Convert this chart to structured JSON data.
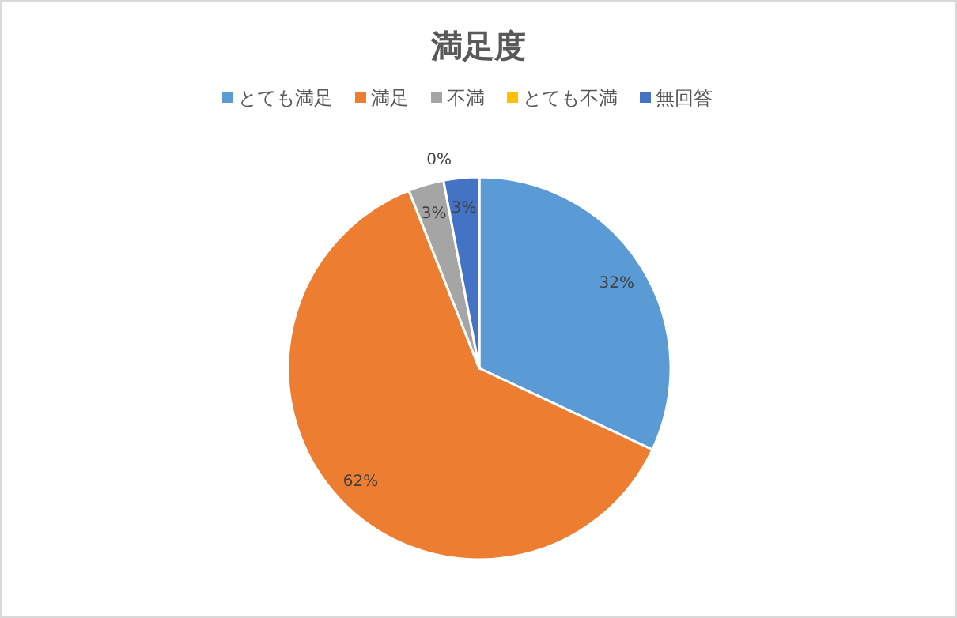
{
  "chart_data": {
    "type": "pie",
    "title": "満足度",
    "categories": [
      "とても満足",
      "満足",
      "不満",
      "とても不満",
      "無回答"
    ],
    "values": [
      32,
      62,
      3,
      0,
      3
    ],
    "colors": [
      "#5b9bd5",
      "#ed7d31",
      "#a5a5a5",
      "#ffc000",
      "#4472c4"
    ],
    "value_labels": [
      "32%",
      "62%",
      "3%",
      "0%",
      "3%"
    ],
    "legend": "top"
  }
}
